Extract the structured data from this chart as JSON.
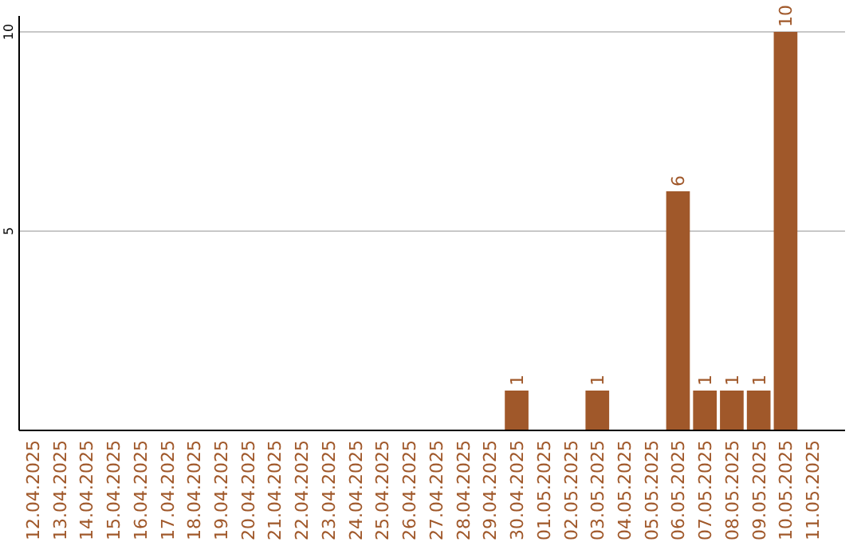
{
  "chart_data": {
    "type": "bar",
    "categories": [
      "12.04.2025",
      "13.04.2025",
      "14.04.2025",
      "15.04.2025",
      "16.04.2025",
      "17.04.2025",
      "18.04.2025",
      "19.04.2025",
      "20.04.2025",
      "21.04.2025",
      "22.04.2025",
      "23.04.2025",
      "24.04.2025",
      "25.04.2025",
      "26.04.2025",
      "27.04.2025",
      "28.04.2025",
      "29.04.2025",
      "30.04.2025",
      "01.05.2025",
      "02.05.2025",
      "03.05.2025",
      "04.05.2025",
      "05.05.2025",
      "06.05.2025",
      "07.05.2025",
      "08.05.2025",
      "09.05.2025",
      "10.05.2025",
      "11.05.2025"
    ],
    "values": [
      0,
      0,
      0,
      0,
      0,
      0,
      0,
      0,
      0,
      0,
      0,
      0,
      0,
      0,
      0,
      0,
      0,
      0,
      1,
      0,
      0,
      1,
      0,
      0,
      6,
      1,
      1,
      1,
      10,
      0
    ],
    "value_labels": [
      null,
      null,
      null,
      null,
      null,
      null,
      null,
      null,
      null,
      null,
      null,
      null,
      null,
      null,
      null,
      null,
      null,
      null,
      "1",
      null,
      null,
      "1",
      null,
      null,
      "6",
      "1",
      "1",
      "1",
      "10",
      null
    ],
    "color": "#a0582a",
    "ylim": [
      0,
      10
    ],
    "yticks": [
      5,
      10
    ],
    "grid": "y"
  }
}
